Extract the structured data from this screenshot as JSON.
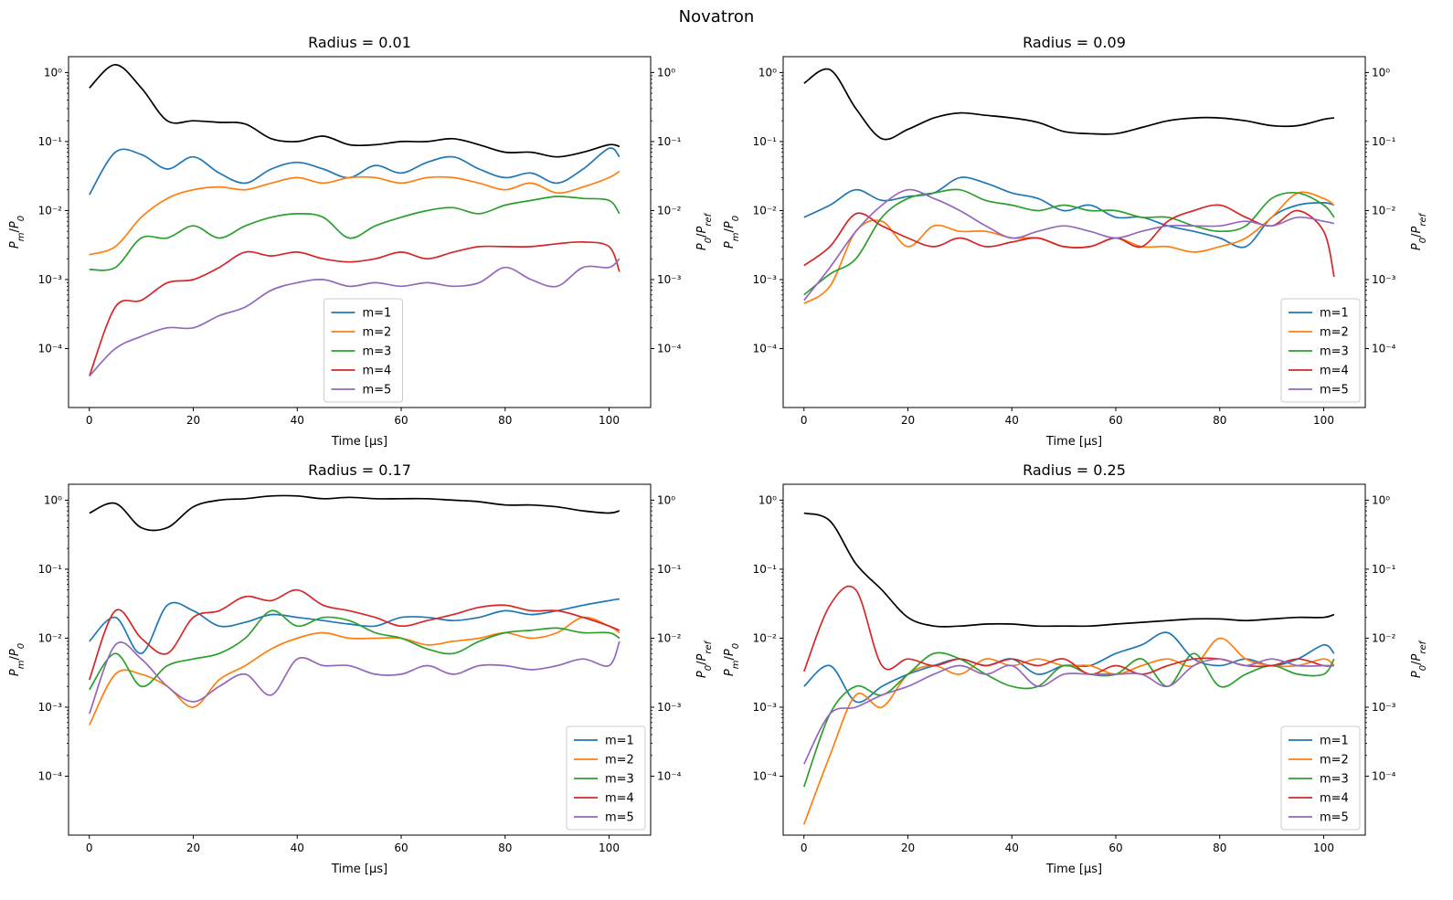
{
  "figure_title": "Novatron",
  "chart_data": [
    {
      "type": "line",
      "title": "Radius = 0.01",
      "xlabel": "Time [μs]",
      "ylabel": "P_m/P_0",
      "ylabel_right": "P_0/P_ref",
      "xlim": [
        -4,
        108
      ],
      "ylim": [
        1.4e-05,
        1.7
      ],
      "yscale": "log",
      "xticks": [
        0,
        20,
        40,
        60,
        80,
        100
      ],
      "yticks_exp": [
        -4,
        -3,
        -2,
        -1,
        0
      ],
      "legend": "lower center",
      "x": [
        0,
        5,
        10,
        15,
        20,
        25,
        30,
        35,
        40,
        45,
        50,
        55,
        60,
        65,
        70,
        75,
        80,
        85,
        90,
        95,
        100,
        102
      ],
      "series": [
        {
          "name": "m=1",
          "color": "#1f77b4",
          "values": [
            0.017,
            0.07,
            0.065,
            0.04,
            0.06,
            0.035,
            0.025,
            0.04,
            0.05,
            0.04,
            0.03,
            0.045,
            0.035,
            0.05,
            0.06,
            0.04,
            0.03,
            0.035,
            0.025,
            0.04,
            0.08,
            0.06
          ]
        },
        {
          "name": "m=2",
          "color": "#ff7f0e",
          "values": [
            0.0023,
            0.003,
            0.008,
            0.015,
            0.02,
            0.022,
            0.02,
            0.025,
            0.03,
            0.025,
            0.03,
            0.03,
            0.025,
            0.03,
            0.03,
            0.025,
            0.02,
            0.025,
            0.018,
            0.022,
            0.03,
            0.037
          ]
        },
        {
          "name": "m=3",
          "color": "#2ca02c",
          "values": [
            0.0014,
            0.0015,
            0.004,
            0.004,
            0.006,
            0.004,
            0.006,
            0.008,
            0.009,
            0.008,
            0.004,
            0.006,
            0.008,
            0.01,
            0.011,
            0.009,
            0.012,
            0.014,
            0.016,
            0.015,
            0.014,
            0.009
          ]
        },
        {
          "name": "m=4",
          "color": "#d62728",
          "values": [
            4e-05,
            0.0004,
            0.0005,
            0.0009,
            0.001,
            0.0015,
            0.0025,
            0.0022,
            0.0025,
            0.002,
            0.0018,
            0.002,
            0.0025,
            0.002,
            0.0025,
            0.003,
            0.003,
            0.003,
            0.0033,
            0.0035,
            0.003,
            0.0013
          ]
        },
        {
          "name": "m=5",
          "color": "#9467bd",
          "values": [
            4e-05,
            0.0001,
            0.00015,
            0.0002,
            0.0002,
            0.0003,
            0.0004,
            0.0007,
            0.0009,
            0.001,
            0.0008,
            0.0009,
            0.0008,
            0.0009,
            0.0008,
            0.0009,
            0.0015,
            0.001,
            0.0008,
            0.0015,
            0.0015,
            0.002
          ]
        },
        {
          "name": "",
          "color": "#000000",
          "values": [
            0.6,
            1.3,
            0.6,
            0.2,
            0.2,
            0.19,
            0.18,
            0.11,
            0.1,
            0.12,
            0.09,
            0.09,
            0.1,
            0.1,
            0.11,
            0.09,
            0.07,
            0.07,
            0.06,
            0.07,
            0.09,
            0.085
          ]
        }
      ]
    },
    {
      "type": "line",
      "title": "Radius = 0.09",
      "xlabel": "Time [μs]",
      "ylabel": "P_m/P_0",
      "ylabel_right": "P_0/P_ref",
      "xlim": [
        -4,
        108
      ],
      "ylim": [
        1.4e-05,
        1.7
      ],
      "yscale": "log",
      "xticks": [
        0,
        20,
        40,
        60,
        80,
        100
      ],
      "yticks_exp": [
        -4,
        -3,
        -2,
        -1,
        0
      ],
      "legend": "lower right",
      "x": [
        0,
        5,
        10,
        15,
        20,
        25,
        30,
        35,
        40,
        45,
        50,
        55,
        60,
        65,
        70,
        75,
        80,
        85,
        90,
        95,
        100,
        102
      ],
      "series": [
        {
          "name": "m=1",
          "color": "#1f77b4",
          "values": [
            0.008,
            0.012,
            0.02,
            0.014,
            0.016,
            0.018,
            0.03,
            0.025,
            0.018,
            0.015,
            0.01,
            0.012,
            0.008,
            0.008,
            0.006,
            0.005,
            0.004,
            0.003,
            0.008,
            0.012,
            0.013,
            0.012
          ]
        },
        {
          "name": "m=2",
          "color": "#ff7f0e",
          "values": [
            0.00045,
            0.0008,
            0.005,
            0.007,
            0.003,
            0.006,
            0.005,
            0.005,
            0.004,
            0.004,
            0.003,
            0.003,
            0.004,
            0.003,
            0.003,
            0.0025,
            0.003,
            0.004,
            0.008,
            0.018,
            0.015,
            0.012
          ]
        },
        {
          "name": "m=3",
          "color": "#2ca02c",
          "values": [
            0.0006,
            0.0012,
            0.002,
            0.008,
            0.015,
            0.018,
            0.02,
            0.014,
            0.012,
            0.01,
            0.012,
            0.01,
            0.01,
            0.008,
            0.008,
            0.006,
            0.005,
            0.006,
            0.015,
            0.018,
            0.012,
            0.008
          ]
        },
        {
          "name": "m=4",
          "color": "#d62728",
          "values": [
            0.0016,
            0.003,
            0.009,
            0.006,
            0.004,
            0.003,
            0.004,
            0.003,
            0.0035,
            0.004,
            0.003,
            0.003,
            0.004,
            0.003,
            0.007,
            0.01,
            0.012,
            0.008,
            0.006,
            0.01,
            0.005,
            0.0011
          ]
        },
        {
          "name": "m=5",
          "color": "#9467bd",
          "values": [
            0.0005,
            0.0015,
            0.005,
            0.012,
            0.02,
            0.015,
            0.01,
            0.006,
            0.004,
            0.005,
            0.006,
            0.005,
            0.004,
            0.005,
            0.006,
            0.006,
            0.006,
            0.007,
            0.006,
            0.008,
            0.007,
            0.0065
          ]
        },
        {
          "name": "",
          "color": "#000000",
          "values": [
            0.7,
            1.1,
            0.3,
            0.11,
            0.15,
            0.22,
            0.26,
            0.24,
            0.22,
            0.19,
            0.14,
            0.13,
            0.13,
            0.16,
            0.2,
            0.22,
            0.22,
            0.2,
            0.17,
            0.17,
            0.21,
            0.22
          ]
        }
      ]
    },
    {
      "type": "line",
      "title": "Radius = 0.17",
      "xlabel": "Time [μs]",
      "ylabel": "P_m/P_0",
      "ylabel_right": "P_0/P_ref",
      "xlim": [
        -4,
        108
      ],
      "ylim": [
        1.4e-05,
        1.7
      ],
      "yscale": "log",
      "xticks": [
        0,
        20,
        40,
        60,
        80,
        100
      ],
      "yticks_exp": [
        -4,
        -3,
        -2,
        -1,
        0
      ],
      "legend": "lower right",
      "x": [
        0,
        5,
        10,
        15,
        20,
        25,
        30,
        35,
        40,
        45,
        50,
        55,
        60,
        65,
        70,
        75,
        80,
        85,
        90,
        95,
        100,
        102
      ],
      "series": [
        {
          "name": "m=1",
          "color": "#1f77b4",
          "values": [
            0.009,
            0.02,
            0.006,
            0.03,
            0.025,
            0.015,
            0.017,
            0.022,
            0.02,
            0.018,
            0.016,
            0.015,
            0.02,
            0.02,
            0.018,
            0.02,
            0.025,
            0.022,
            0.025,
            0.03,
            0.035,
            0.037
          ]
        },
        {
          "name": "m=2",
          "color": "#ff7f0e",
          "values": [
            0.00055,
            0.003,
            0.003,
            0.002,
            0.001,
            0.0025,
            0.004,
            0.007,
            0.01,
            0.012,
            0.01,
            0.01,
            0.01,
            0.008,
            0.009,
            0.01,
            0.012,
            0.01,
            0.012,
            0.02,
            0.015,
            0.012
          ]
        },
        {
          "name": "m=3",
          "color": "#2ca02c",
          "values": [
            0.0018,
            0.006,
            0.002,
            0.004,
            0.005,
            0.006,
            0.01,
            0.025,
            0.015,
            0.02,
            0.018,
            0.012,
            0.01,
            0.007,
            0.006,
            0.009,
            0.012,
            0.013,
            0.014,
            0.012,
            0.012,
            0.01
          ]
        },
        {
          "name": "m=4",
          "color": "#d62728",
          "values": [
            0.0025,
            0.025,
            0.01,
            0.006,
            0.02,
            0.025,
            0.04,
            0.035,
            0.05,
            0.03,
            0.025,
            0.02,
            0.015,
            0.018,
            0.022,
            0.028,
            0.03,
            0.025,
            0.025,
            0.02,
            0.015,
            0.013
          ]
        },
        {
          "name": "m=5",
          "color": "#9467bd",
          "values": [
            0.0008,
            0.008,
            0.005,
            0.002,
            0.0012,
            0.002,
            0.003,
            0.0015,
            0.005,
            0.004,
            0.004,
            0.003,
            0.003,
            0.004,
            0.003,
            0.004,
            0.004,
            0.0035,
            0.004,
            0.005,
            0.004,
            0.009
          ]
        },
        {
          "name": "",
          "color": "#000000",
          "values": [
            0.65,
            0.9,
            0.4,
            0.4,
            0.8,
            1.0,
            1.05,
            1.15,
            1.15,
            1.05,
            1.1,
            1.05,
            1.05,
            1.05,
            1.0,
            0.95,
            0.85,
            0.85,
            0.8,
            0.7,
            0.65,
            0.7
          ]
        }
      ]
    },
    {
      "type": "line",
      "title": "Radius = 0.25",
      "xlabel": "Time [μs]",
      "ylabel": "P_m/P_0",
      "ylabel_right": "P_0/P_ref",
      "xlim": [
        -4,
        108
      ],
      "ylim": [
        1.4e-05,
        1.7
      ],
      "yscale": "log",
      "xticks": [
        0,
        20,
        40,
        60,
        80,
        100
      ],
      "yticks_exp": [
        -4,
        -3,
        -2,
        -1,
        0
      ],
      "legend": "lower right",
      "x": [
        0,
        5,
        10,
        15,
        20,
        25,
        30,
        35,
        40,
        45,
        50,
        55,
        60,
        65,
        70,
        75,
        80,
        85,
        90,
        95,
        100,
        102
      ],
      "series": [
        {
          "name": "m=1",
          "color": "#1f77b4",
          "values": [
            0.002,
            0.004,
            0.0012,
            0.002,
            0.003,
            0.004,
            0.005,
            0.004,
            0.005,
            0.003,
            0.004,
            0.004,
            0.006,
            0.008,
            0.012,
            0.005,
            0.004,
            0.005,
            0.004,
            0.005,
            0.008,
            0.006
          ]
        },
        {
          "name": "m=2",
          "color": "#ff7f0e",
          "values": [
            2e-05,
            0.0002,
            0.0015,
            0.001,
            0.003,
            0.004,
            0.003,
            0.005,
            0.004,
            0.005,
            0.004,
            0.004,
            0.003,
            0.004,
            0.005,
            0.004,
            0.01,
            0.005,
            0.004,
            0.004,
            0.005,
            0.004
          ]
        },
        {
          "name": "m=3",
          "color": "#2ca02c",
          "values": [
            7e-05,
            0.0008,
            0.002,
            0.0015,
            0.003,
            0.006,
            0.005,
            0.003,
            0.002,
            0.002,
            0.004,
            0.003,
            0.003,
            0.005,
            0.002,
            0.006,
            0.002,
            0.003,
            0.004,
            0.003,
            0.003,
            0.005
          ]
        },
        {
          "name": "m=4",
          "color": "#d62728",
          "values": [
            0.0033,
            0.03,
            0.05,
            0.004,
            0.005,
            0.004,
            0.005,
            0.004,
            0.005,
            0.004,
            0.005,
            0.003,
            0.004,
            0.003,
            0.004,
            0.005,
            0.005,
            0.004,
            0.004,
            0.005,
            0.004,
            0.004
          ]
        },
        {
          "name": "m=5",
          "color": "#9467bd",
          "values": [
            0.00015,
            0.0008,
            0.001,
            0.0015,
            0.002,
            0.003,
            0.004,
            0.003,
            0.004,
            0.002,
            0.003,
            0.003,
            0.003,
            0.003,
            0.002,
            0.004,
            0.005,
            0.004,
            0.005,
            0.004,
            0.004,
            0.004
          ]
        },
        {
          "name": "",
          "color": "#000000",
          "values": [
            0.65,
            0.5,
            0.12,
            0.05,
            0.02,
            0.015,
            0.015,
            0.016,
            0.016,
            0.015,
            0.015,
            0.015,
            0.016,
            0.017,
            0.018,
            0.019,
            0.019,
            0.018,
            0.019,
            0.02,
            0.02,
            0.022
          ]
        }
      ]
    }
  ]
}
